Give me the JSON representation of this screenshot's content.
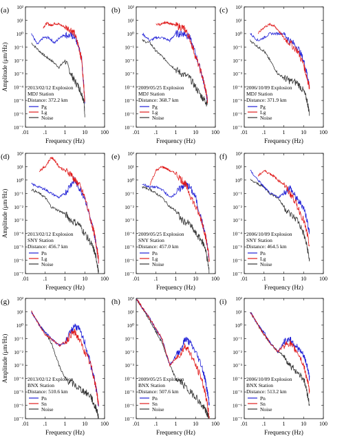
{
  "figure": {
    "y_axis_title": "Amplitude (μm/Hz)",
    "x_axis_title": "Frequency (Hz)",
    "x_ticks": [
      ".01",
      ".1",
      "1",
      "10",
      "100"
    ],
    "y_ticks": [
      "10²",
      "10¹",
      "10⁰",
      "10⁻¹",
      "10⁻²",
      "10⁻³",
      "10⁻⁴",
      "10⁻⁵",
      "10⁻⁶",
      "10⁻⁷"
    ]
  },
  "chart_data": [
    {
      "letter": "(a)",
      "type": "line",
      "xscale": "log",
      "yscale": "log",
      "xlim": [
        0.01,
        100
      ],
      "ylim": [
        1e-07,
        100
      ],
      "event": "2013/02/12 Explosion",
      "station": "MDJ Station",
      "distance": "Distance: 372.2 km",
      "legend": [
        "Pg",
        "Lg",
        "Noise"
      ],
      "series": [
        {
          "name": "Pg",
          "color": "#1f1fd6",
          "x": [
            0.02,
            0.04,
            0.08,
            0.15,
            0.3,
            0.6,
            1,
            2,
            3,
            5,
            7,
            9,
            10
          ],
          "y": [
            1,
            0.15,
            0.5,
            0.5,
            0.2,
            0.6,
            0.8,
            0.7,
            0.6,
            0.1,
            0.01,
            0.0001,
            1e-05
          ]
        },
        {
          "name": "Lg",
          "color": "#e01b1b",
          "x": [
            0.08,
            0.12,
            0.2,
            0.3,
            0.5,
            1,
            2,
            3,
            5,
            7,
            9,
            10
          ],
          "y": [
            3,
            6,
            4,
            6,
            5,
            3,
            2,
            1,
            0.1,
            0.01,
            0.0001,
            1e-05
          ]
        },
        {
          "name": "Noise",
          "color": "#333333",
          "x": [
            0.02,
            0.05,
            0.1,
            0.2,
            0.5,
            1,
            2,
            3,
            5,
            7,
            9,
            10
          ],
          "y": [
            0.2,
            0.05,
            0.02,
            0.01,
            0.003,
            0.01,
            0.001,
            0.0003,
            0.0001,
            3e-05,
            1e-05,
            1e-06
          ]
        }
      ]
    },
    {
      "letter": "(b)",
      "type": "line",
      "xscale": "log",
      "yscale": "log",
      "xlim": [
        0.01,
        100
      ],
      "ylim": [
        1e-07,
        100
      ],
      "event": "2009/05/25 Explosion",
      "station": "MDJ Station",
      "distance": "Distance: 368.7 km",
      "legend": [
        "Pg",
        "Lg",
        "Noise"
      ],
      "series": [
        {
          "name": "Pg",
          "color": "#1f1fd6",
          "x": [
            0.02,
            0.05,
            0.1,
            0.2,
            0.5,
            1,
            2,
            3,
            5,
            10,
            20,
            30,
            40
          ],
          "y": [
            1,
            0.3,
            0.5,
            0.5,
            0.3,
            1,
            1,
            1,
            0.5,
            0.03,
            0.001,
            0.0001,
            1e-05
          ]
        },
        {
          "name": "Lg",
          "color": "#e01b1b",
          "x": [
            0.1,
            0.2,
            0.3,
            0.5,
            1,
            2,
            3,
            5,
            10,
            20,
            30,
            40
          ],
          "y": [
            5,
            5,
            7,
            6,
            4,
            3,
            2,
            0.5,
            0.02,
            0.001,
            0.0001,
            1e-05
          ]
        },
        {
          "name": "Noise",
          "color": "#333333",
          "x": [
            0.02,
            0.05,
            0.1,
            0.2,
            0.5,
            1,
            2,
            5,
            10,
            20,
            30,
            40
          ],
          "y": [
            0.3,
            0.2,
            0.05,
            0.02,
            0.005,
            0.002,
            0.001,
            0.0005,
            0.0001,
            2e-05,
            1e-05,
            5e-06
          ]
        }
      ]
    },
    {
      "letter": "(c)",
      "type": "line",
      "xscale": "log",
      "yscale": "log",
      "xlim": [
        0.01,
        100
      ],
      "ylim": [
        1e-07,
        100
      ],
      "event": "2006/10/09 Explosion",
      "station": "MDJ Station",
      "distance": "Distance: 371.9 km",
      "legend": [
        "Pg",
        "Lg",
        "Noise"
      ],
      "series": [
        {
          "name": "Pg",
          "color": "#1f1fd6",
          "x": [
            0.02,
            0.05,
            0.1,
            0.2,
            0.5,
            1,
            2,
            5,
            10,
            15,
            20
          ],
          "y": [
            1,
            0.3,
            0.5,
            1,
            1,
            1,
            0.3,
            0.1,
            0.01,
            0.001,
            0.0001
          ]
        },
        {
          "name": "Lg",
          "color": "#e01b1b",
          "x": [
            0.05,
            0.1,
            0.2,
            0.3,
            0.5,
            1,
            2,
            5,
            10,
            15,
            20
          ],
          "y": [
            1,
            3,
            5,
            4,
            2,
            0.5,
            0.2,
            0.05,
            0.005,
            0.0005,
            0.0001
          ]
        },
        {
          "name": "Noise",
          "color": "#333333",
          "x": [
            0.02,
            0.05,
            0.1,
            0.2,
            0.5,
            1,
            2,
            5,
            10,
            15,
            20
          ],
          "y": [
            0.3,
            0.1,
            0.05,
            0.01,
            0.001,
            0.0005,
            0.0003,
            0.0002,
            5e-05,
            1e-05,
            1e-06
          ]
        }
      ]
    },
    {
      "letter": "(d)",
      "type": "line",
      "xscale": "log",
      "yscale": "log",
      "xlim": [
        0.01,
        100
      ],
      "ylim": [
        1e-07,
        100
      ],
      "event": "2013/02/12 Explosion",
      "station": "SNY Station",
      "distance": "Distance: 456.7 km",
      "legend": [
        "Pn",
        "Lg",
        "Noise"
      ],
      "series": [
        {
          "name": "Pn",
          "color": "#1f1fd6",
          "x": [
            0.02,
            0.05,
            0.1,
            0.2,
            0.5,
            1,
            2,
            3,
            5,
            10,
            20,
            30,
            40,
            50
          ],
          "y": [
            0.5,
            0.3,
            0.2,
            0.1,
            0.05,
            0.1,
            0.5,
            1,
            0.3,
            0.05,
            0.001,
            0.0001,
            1e-05,
            1e-06
          ]
        },
        {
          "name": "Lg",
          "color": "#e01b1b",
          "x": [
            0.05,
            0.1,
            0.2,
            0.3,
            0.5,
            1,
            2,
            3,
            5,
            10,
            20,
            30,
            40,
            50
          ],
          "y": [
            5,
            10,
            50,
            30,
            10,
            5,
            3,
            1,
            0.5,
            0.05,
            0.001,
            0.0001,
            1e-05,
            1e-06
          ]
        },
        {
          "name": "Noise",
          "color": "#333333",
          "x": [
            0.02,
            0.05,
            0.1,
            0.2,
            0.5,
            1,
            2,
            5,
            10,
            20,
            30,
            40,
            50
          ],
          "y": [
            0.2,
            0.1,
            0.05,
            0.01,
            0.005,
            0.003,
            0.001,
            0.0005,
            0.0001,
            2e-05,
            5e-06,
            1e-06,
            1e-07
          ]
        }
      ]
    },
    {
      "letter": "(e)",
      "type": "line",
      "xscale": "log",
      "yscale": "log",
      "xlim": [
        0.01,
        100
      ],
      "ylim": [
        1e-07,
        100
      ],
      "event": "2009/05/25 Explosion",
      "station": "SNY Station",
      "distance": "Distance: 457.0 km",
      "legend": [
        "Pn",
        "Lg",
        "Noise"
      ],
      "series": [
        {
          "name": "Pn",
          "color": "#1f1fd6",
          "x": [
            0.02,
            0.05,
            0.1,
            0.2,
            0.5,
            1,
            2,
            3,
            5,
            10,
            20,
            30,
            40,
            50
          ],
          "y": [
            0.5,
            0.3,
            0.3,
            0.2,
            0.05,
            0.1,
            0.3,
            0.5,
            0.3,
            0.05,
            0.001,
            0.0001,
            1e-05,
            1e-06
          ]
        },
        {
          "name": "Lg",
          "color": "#e01b1b",
          "x": [
            0.05,
            0.1,
            0.2,
            0.3,
            0.5,
            1,
            2,
            3,
            5,
            10,
            20,
            30,
            40,
            50
          ],
          "y": [
            0.5,
            5,
            10,
            8,
            5,
            3,
            1,
            0.5,
            0.1,
            0.01,
            0.001,
            0.0001,
            1e-05,
            1e-06
          ]
        },
        {
          "name": "Noise",
          "color": "#333333",
          "x": [
            0.02,
            0.05,
            0.1,
            0.2,
            0.5,
            1,
            2,
            5,
            10,
            20,
            30,
            40,
            50
          ],
          "y": [
            0.3,
            0.2,
            0.1,
            0.05,
            0.01,
            0.005,
            0.001,
            0.0005,
            0.0001,
            3e-05,
            1e-05,
            1e-06,
            1e-07
          ]
        }
      ]
    },
    {
      "letter": "(f)",
      "type": "line",
      "xscale": "log",
      "yscale": "log",
      "xlim": [
        0.01,
        100
      ],
      "ylim": [
        1e-07,
        100
      ],
      "event": "2006/10/09 Explosion",
      "station": "SNY Station",
      "distance": "Distance: 464.5 km",
      "legend": [
        "Pn",
        "Lg",
        "Noise"
      ],
      "series": [
        {
          "name": "Pn",
          "color": "#1f1fd6",
          "x": [
            0.02,
            0.05,
            0.1,
            0.2,
            0.5,
            1,
            2,
            3,
            5,
            10,
            15,
            20
          ],
          "y": [
            5,
            1,
            0.3,
            0.1,
            0.05,
            0.1,
            0.3,
            0.1,
            0.03,
            0.01,
            0.001,
            0.0001
          ]
        },
        {
          "name": "Lg",
          "color": "#e01b1b",
          "x": [
            0.05,
            0.1,
            0.2,
            0.3,
            0.5,
            1,
            2,
            3,
            5,
            10,
            15,
            20
          ],
          "y": [
            2,
            5,
            3,
            2,
            1,
            0.5,
            0.1,
            0.05,
            0.01,
            0.001,
            0.0001,
            1e-05
          ]
        },
        {
          "name": "Noise",
          "color": "#333333",
          "x": [
            0.02,
            0.05,
            0.1,
            0.2,
            0.5,
            1,
            2,
            5,
            10,
            15,
            20
          ],
          "y": [
            1,
            0.5,
            0.3,
            0.1,
            0.05,
            0.01,
            0.003,
            0.001,
            0.0001,
            1e-05,
            1e-06
          ]
        }
      ]
    },
    {
      "letter": "(g)",
      "type": "line",
      "xscale": "log",
      "yscale": "log",
      "xlim": [
        0.01,
        100
      ],
      "ylim": [
        1e-07,
        100
      ],
      "event": "2013/02/12 Explosion",
      "station": "BNX Station",
      "distance": "Distance: 510.6 km",
      "legend": [
        "Pn",
        "Sn",
        "Noise"
      ],
      "series": [
        {
          "name": "Pn",
          "color": "#1f1fd6",
          "x": [
            0.02,
            0.05,
            0.1,
            0.2,
            0.5,
            1,
            2,
            3,
            5,
            10,
            20,
            30,
            40,
            50
          ],
          "y": [
            10,
            1,
            0.3,
            0.1,
            0.03,
            0.05,
            0.3,
            1,
            0.5,
            0.05,
            0.001,
            0.0001,
            1e-05,
            1e-06
          ]
        },
        {
          "name": "Sn",
          "color": "#e01b1b",
          "x": [
            0.02,
            0.05,
            0.1,
            0.2,
            0.5,
            1,
            2,
            3,
            5,
            10,
            20,
            30,
            40,
            50
          ],
          "y": [
            10,
            1,
            0.2,
            0.1,
            0.03,
            0.05,
            0.2,
            0.3,
            0.1,
            0.01,
            0.001,
            0.0001,
            1e-05,
            1e-06
          ]
        },
        {
          "name": "Noise",
          "color": "#333333",
          "x": [
            0.02,
            0.05,
            0.1,
            0.2,
            0.5,
            1,
            2,
            5,
            10,
            20,
            30,
            40,
            50
          ],
          "y": [
            10,
            1,
            0.3,
            0.05,
            0.001,
            0.0001,
            5e-05,
            2e-05,
            1e-05,
            5e-06,
            1e-06,
            5e-07,
            1e-07
          ]
        }
      ]
    },
    {
      "letter": "(h)",
      "type": "line",
      "xscale": "log",
      "yscale": "log",
      "xlim": [
        0.01,
        100
      ],
      "ylim": [
        1e-07,
        100
      ],
      "event": "2009/05/25 Explosion",
      "station": "BNX Station",
      "distance": "Distance: 507.6 km",
      "legend": [
        "Pn",
        "Sn",
        "Noise"
      ],
      "series": [
        {
          "name": "Pn",
          "color": "#1f1fd6",
          "x": [
            0.01,
            0.02,
            0.05,
            0.1,
            0.2,
            0.5,
            1,
            2,
            3,
            5,
            10,
            20,
            30,
            40,
            50
          ],
          "y": [
            100,
            20,
            3,
            0.5,
            0.1,
            0.001,
            0.005,
            0.02,
            0.1,
            0.05,
            0.01,
            0.001,
            0.0001,
            1e-05,
            1e-06
          ]
        },
        {
          "name": "Sn",
          "color": "#e01b1b",
          "x": [
            0.01,
            0.02,
            0.05,
            0.1,
            0.2,
            0.5,
            1,
            2,
            3,
            5,
            10,
            20,
            30,
            40,
            50
          ],
          "y": [
            100,
            20,
            3,
            0.5,
            0.1,
            0.001,
            0.003,
            0.01,
            0.03,
            0.01,
            0.001,
            0.0001,
            1e-05,
            1e-06,
            1e-07
          ]
        },
        {
          "name": "Noise",
          "color": "#333333",
          "x": [
            0.01,
            0.02,
            0.05,
            0.1,
            0.2,
            0.5,
            1,
            2,
            5,
            10,
            20,
            30,
            40,
            50
          ],
          "y": [
            100,
            20,
            2,
            0.3,
            0.05,
            0.001,
            0.0001,
            5e-05,
            1e-05,
            5e-06,
            1e-06,
            5e-07,
            2e-07,
            1e-07
          ]
        }
      ]
    },
    {
      "letter": "(i)",
      "type": "line",
      "xscale": "log",
      "yscale": "log",
      "xlim": [
        0.01,
        100
      ],
      "ylim": [
        1e-07,
        100
      ],
      "event": "2006/10/09 Explosion",
      "station": "BNX Station",
      "distance": "Distance: 513.2 km",
      "legend": [
        "Pn",
        "Sn",
        "Noise"
      ],
      "series": [
        {
          "name": "Pn",
          "color": "#1f1fd6",
          "x": [
            0.02,
            0.05,
            0.1,
            0.2,
            0.5,
            1,
            2,
            3,
            5,
            10,
            15,
            20
          ],
          "y": [
            10,
            1,
            0.3,
            0.05,
            0.01,
            0.05,
            0.1,
            0.05,
            0.02,
            0.005,
            0.001,
            0.0001
          ]
        },
        {
          "name": "Sn",
          "color": "#e01b1b",
          "x": [
            0.02,
            0.05,
            0.1,
            0.2,
            0.5,
            1,
            2,
            3,
            5,
            10,
            15,
            20
          ],
          "y": [
            10,
            1,
            0.2,
            0.05,
            0.01,
            0.03,
            0.05,
            0.02,
            0.01,
            0.001,
            0.0001,
            1e-05
          ]
        },
        {
          "name": "Noise",
          "color": "#333333",
          "x": [
            0.02,
            0.05,
            0.1,
            0.2,
            0.5,
            1,
            2,
            5,
            10,
            15,
            20
          ],
          "y": [
            10,
            1,
            0.2,
            0.05,
            0.01,
            0.005,
            0.001,
            0.0003,
            0.0001,
            1e-05,
            1e-06
          ]
        }
      ]
    }
  ]
}
